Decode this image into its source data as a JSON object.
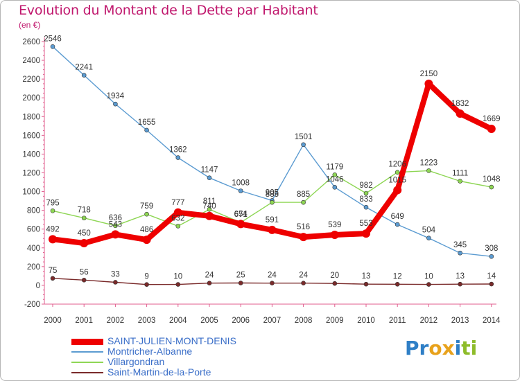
{
  "title": "Evolution du Montant de la Dette par Habitant",
  "unit": "(en €)",
  "logo": {
    "text": "Proxiti",
    "letters": [
      {
        "ch": "P",
        "color": "#2f7fc6"
      },
      {
        "ch": "r",
        "color": "#2f7fc6"
      },
      {
        "ch": "o",
        "color": "#e8a21c"
      },
      {
        "ch": "x",
        "color": "#e8a21c"
      },
      {
        "ch": "i",
        "color": "#2f7fc6"
      },
      {
        "ch": "t",
        "color": "#8ebc2a"
      },
      {
        "ch": "i",
        "color": "#8ebc2a"
      }
    ]
  },
  "chart_data": {
    "type": "line",
    "title": "Evolution du Montant de la Dette par Habitant",
    "ylabel": "(en €)",
    "xlabel": "",
    "x": [
      "2000",
      "2001",
      "2002",
      "2003",
      "2004",
      "2005",
      "2006",
      "2007",
      "2008",
      "2009",
      "2010",
      "2011",
      "2012",
      "2013",
      "2014"
    ],
    "ylim": [
      -200,
      2600
    ],
    "yticks": [
      "-200",
      "0",
      "200",
      "400",
      "600",
      "800",
      "1000",
      "1200",
      "1400",
      "1600",
      "1800",
      "2000",
      "2200",
      "2400",
      "2600"
    ],
    "grid": false,
    "legend_position": "bottom-left",
    "series": [
      {
        "name": "SAINT-JULIEN-MONT-DENIS",
        "color": "#ee0000",
        "emphasis": true,
        "values": [
          492,
          450,
          543,
          486,
          777,
          740,
          654,
          591,
          516,
          539,
          553,
          1015,
          2150,
          1832,
          1669
        ],
        "labels": [
          "492",
          "450",
          "543",
          "486",
          "777",
          "740",
          "654",
          "591",
          "516",
          "539",
          "553",
          "1015",
          "2150",
          "1832",
          "1669"
        ]
      },
      {
        "name": "Montricher-Albanne",
        "color": "#5b9bd1",
        "emphasis": false,
        "values": [
          2546,
          2241,
          1934,
          1655,
          1362,
          1147,
          1008,
          905,
          1501,
          1046,
          833,
          649,
          504,
          345,
          308
        ],
        "labels": [
          "2546",
          "2241",
          "1934",
          "1655",
          "1362",
          "1147",
          "1008",
          "905",
          "1501",
          "1046",
          "833",
          "649",
          "504",
          "345",
          "308"
        ]
      },
      {
        "name": "Villargondran",
        "color": "#8ed654",
        "emphasis": false,
        "values": [
          795,
          718,
          636,
          759,
          632,
          811,
          671,
          885,
          885,
          1179,
          982,
          1206,
          1223,
          1111,
          1048
        ],
        "labels": [
          "795",
          "718",
          "636",
          "759",
          "632",
          "811",
          "671",
          "885",
          "885",
          "1179",
          "982",
          "1206",
          "1223",
          "1111",
          "1048"
        ]
      },
      {
        "name": "Saint-Martin-de-la-Porte",
        "color": "#7a2a2a",
        "emphasis": false,
        "values": [
          75,
          56,
          33,
          9,
          10,
          24,
          25,
          24,
          24,
          20,
          13,
          12,
          10,
          13,
          14
        ],
        "labels": [
          "75",
          "56",
          "33",
          "9",
          "10",
          "24",
          "25",
          "24",
          "24",
          "20",
          "13",
          "12",
          "10",
          "13",
          "14"
        ]
      }
    ]
  }
}
